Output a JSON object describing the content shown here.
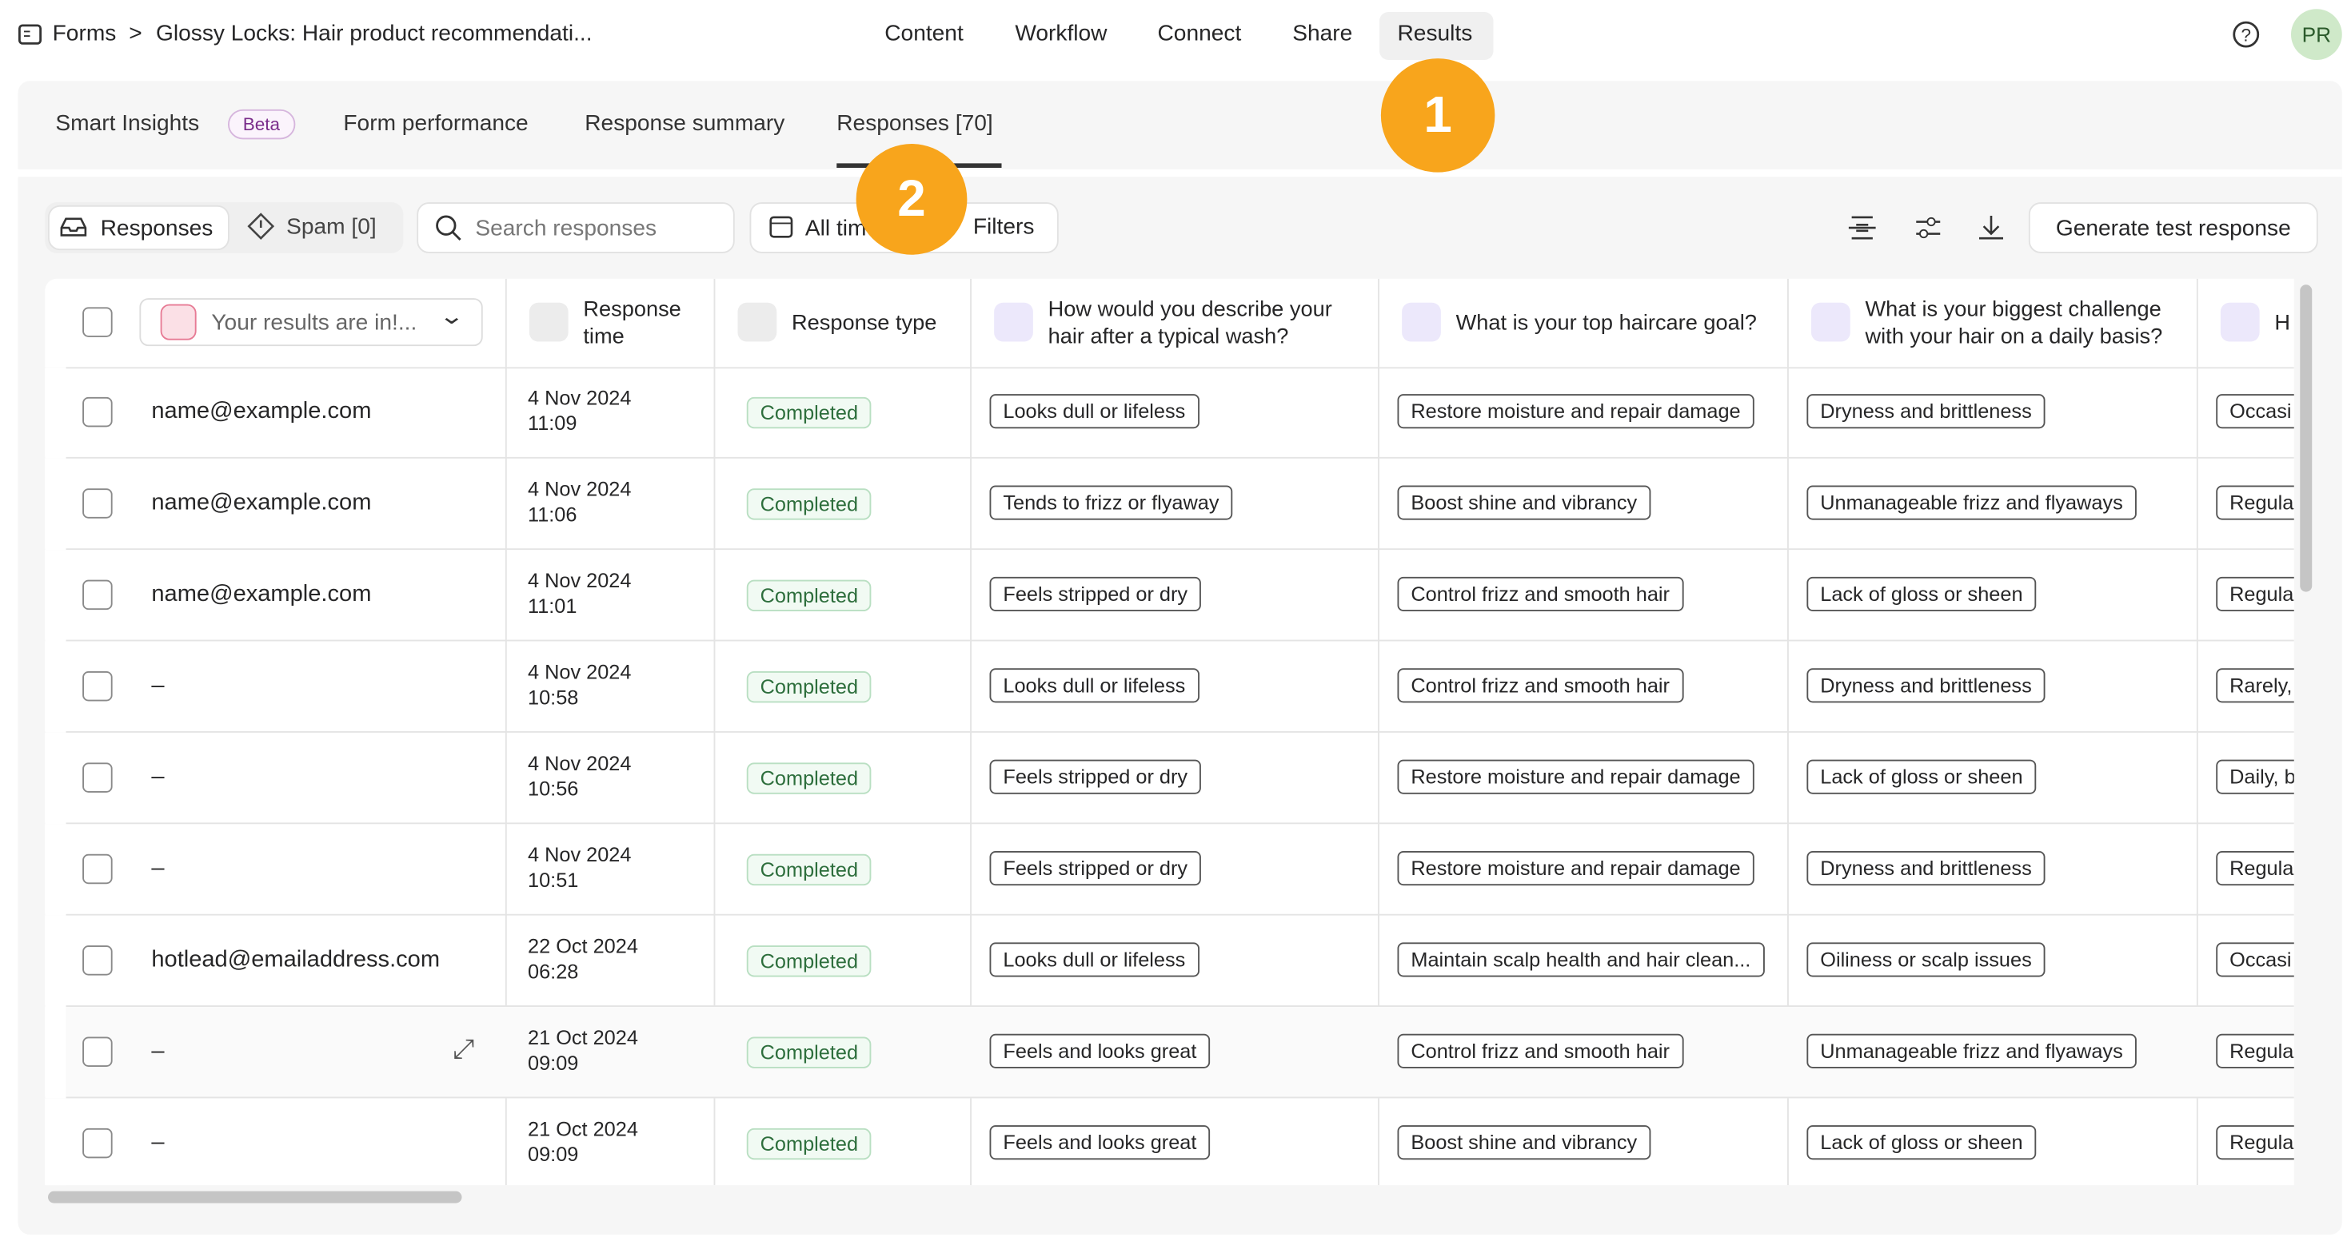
{
  "breadcrumb": {
    "root": "Forms",
    "separator": ">",
    "title": "Glossy Locks: Hair product recommendati..."
  },
  "nav": [
    "Content",
    "Workflow",
    "Connect",
    "Share",
    "Results"
  ],
  "avatar": "PR",
  "subtabs": [
    "Smart Insights",
    "Form performance",
    "Response summary",
    "Responses [70]"
  ],
  "subtab_badge": "Beta",
  "toolbar": {
    "responses": "Responses",
    "spam": "Spam [0]",
    "search_placeholder": "Search responses",
    "time": "All time",
    "filters": "Filters",
    "generate": "Generate test response"
  },
  "annotations": [
    "1",
    "2"
  ],
  "table": {
    "headers": [
      "Your results are in!...",
      "Response time",
      "Response type",
      "How would you describe your hair after a typical wash?",
      "What is your top haircare goal?",
      "What is your biggest challenge with your hair on a daily basis?",
      "H ha"
    ],
    "rows": [
      [
        "name@example.com",
        "4 Nov 2024",
        "11:09",
        "Completed",
        "Looks dull or lifeless",
        "Restore moisture and repair damage",
        "Dryness and brittleness",
        "Occasi"
      ],
      [
        "name@example.com",
        "4 Nov 2024",
        "11:06",
        "Completed",
        "Tends to frizz or flyaway",
        "Boost shine and vibrancy",
        "Unmanageable frizz and flyaways",
        "Regula"
      ],
      [
        "name@example.com",
        "4 Nov 2024",
        "11:01",
        "Completed",
        "Feels stripped or dry",
        "Control frizz and smooth hair",
        "Lack of gloss or sheen",
        "Regula"
      ],
      [
        "–",
        "4 Nov 2024",
        "10:58",
        "Completed",
        "Looks dull or lifeless",
        "Control frizz and smooth hair",
        "Dryness and brittleness",
        "Rarely,"
      ],
      [
        "–",
        "4 Nov 2024",
        "10:56",
        "Completed",
        "Feels stripped or dry",
        "Restore moisture and repair damage",
        "Lack of gloss or sheen",
        "Daily, b"
      ],
      [
        "–",
        "4 Nov 2024",
        "10:51",
        "Completed",
        "Feels stripped or dry",
        "Restore moisture and repair damage",
        "Dryness and brittleness",
        "Regula"
      ],
      [
        "hotlead@emailaddress.com",
        "22 Oct 2024",
        "06:28",
        "Completed",
        "Looks dull or lifeless",
        "Maintain scalp health and hair clean...",
        "Oiliness or scalp issues",
        "Occasi"
      ],
      [
        "–",
        "21 Oct 2024",
        "09:09",
        "Completed",
        "Feels and looks great",
        "Control frizz and smooth hair",
        "Unmanageable frizz and flyaways",
        "Regula"
      ],
      [
        "–",
        "21 Oct 2024",
        "09:09",
        "Completed",
        "Feels and looks great",
        "Boost shine and vibrancy",
        "Lack of gloss or sheen",
        "Regula"
      ]
    ]
  }
}
